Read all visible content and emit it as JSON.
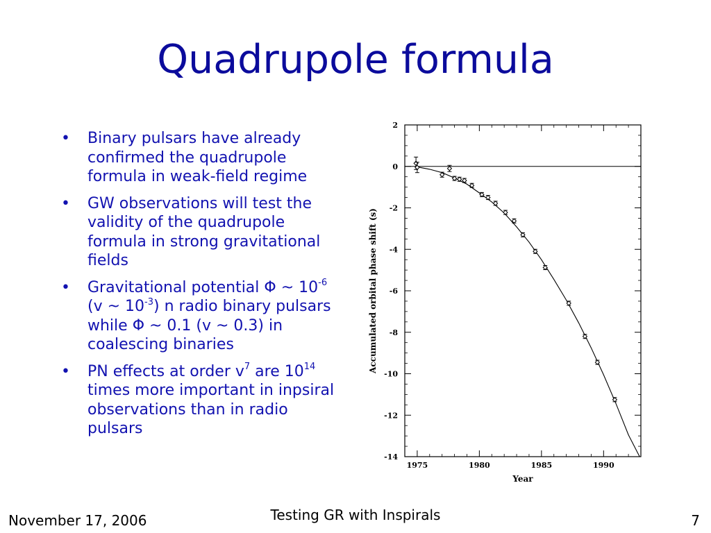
{
  "slide": {
    "title": "Quadrupole formula",
    "footer_date": "November 17, 2006",
    "footer_title": "Testing GR with Inspirals",
    "page_number": "7"
  },
  "bullets": [
    {
      "marker": "•",
      "segments": [
        {
          "t": "Binary pulsars have already confirmed the quadrupole formula in weak-field regime"
        }
      ]
    },
    {
      "marker": "•",
      "segments": [
        {
          "t": "GW observations will test the validity of the quadrupole formula in strong gravitational fields"
        }
      ]
    },
    {
      "marker": "•",
      "segments": [
        {
          "t": "Gravitational potential Φ ~ 10"
        },
        {
          "sup": "-6"
        },
        {
          "t": " (v ~ 10"
        },
        {
          "sup": "-3"
        },
        {
          "t": ") n radio binary pulsars while Φ ~ 0.1 (v ~ 0.3) in coalescing binaries"
        }
      ]
    },
    {
      "marker": "•",
      "segments": [
        {
          "t": "PN effects at order v"
        },
        {
          "sup": "7"
        },
        {
          "t": " are 10"
        },
        {
          "sup": "14"
        },
        {
          "t": " times more important in inpsiral observations than in radio pulsars"
        }
      ]
    }
  ],
  "chart_data": {
    "type": "scatter",
    "xlabel": "Year",
    "ylabel": "Accumulated orbital phase shift (s)",
    "xlim": [
      1974,
      1993
    ],
    "ylim": [
      -14,
      2
    ],
    "x_ticks": [
      1975,
      1980,
      1985,
      1990
    ],
    "y_ticks": [
      2,
      0,
      -2,
      -4,
      -6,
      -8,
      -10,
      -12,
      -14
    ],
    "grid": false,
    "reference_line_y": 0,
    "curve": [
      {
        "x": 1974.8,
        "y": 0
      },
      {
        "x": 1976,
        "y": -0.14
      },
      {
        "x": 1977,
        "y": -0.3
      },
      {
        "x": 1978,
        "y": -0.56
      },
      {
        "x": 1979,
        "y": -0.86
      },
      {
        "x": 1980,
        "y": -1.28
      },
      {
        "x": 1981,
        "y": -1.72
      },
      {
        "x": 1982,
        "y": -2.25
      },
      {
        "x": 1983,
        "y": -2.92
      },
      {
        "x": 1984,
        "y": -3.65
      },
      {
        "x": 1985,
        "y": -4.5
      },
      {
        "x": 1986,
        "y": -5.45
      },
      {
        "x": 1987,
        "y": -6.45
      },
      {
        "x": 1988,
        "y": -7.55
      },
      {
        "x": 1989,
        "y": -8.75
      },
      {
        "x": 1990,
        "y": -10.05
      },
      {
        "x": 1991,
        "y": -11.45
      },
      {
        "x": 1992,
        "y": -12.95
      },
      {
        "x": 1992.9,
        "y": -14
      }
    ],
    "points": [
      {
        "x": 1974.9,
        "y": 0.15,
        "err": 0.3
      },
      {
        "x": 1975.0,
        "y": -0.05,
        "err": 0.25
      },
      {
        "x": 1977.0,
        "y": -0.4,
        "err": 0.12
      },
      {
        "x": 1977.6,
        "y": -0.1,
        "err": 0.15
      },
      {
        "x": 1978.0,
        "y": -0.58,
        "err": 0.1
      },
      {
        "x": 1978.4,
        "y": -0.62,
        "err": 0.1
      },
      {
        "x": 1978.8,
        "y": -0.68,
        "err": 0.08
      },
      {
        "x": 1979.4,
        "y": -0.92,
        "err": 0.06
      },
      {
        "x": 1980.2,
        "y": -1.36,
        "err": 0.06
      },
      {
        "x": 1980.7,
        "y": -1.5,
        "err": 0.06
      },
      {
        "x": 1981.3,
        "y": -1.78,
        "err": 0.05
      },
      {
        "x": 1982.1,
        "y": -2.22,
        "err": 0.05
      },
      {
        "x": 1982.8,
        "y": -2.63,
        "err": 0.05
      },
      {
        "x": 1983.5,
        "y": -3.3,
        "err": 0.05
      },
      {
        "x": 1984.5,
        "y": -4.1,
        "err": 0.05
      },
      {
        "x": 1985.3,
        "y": -4.88,
        "err": 0.05
      },
      {
        "x": 1987.2,
        "y": -6.6,
        "err": 0.05
      },
      {
        "x": 1988.5,
        "y": -8.2,
        "err": 0.05
      },
      {
        "x": 1989.5,
        "y": -9.45,
        "err": 0.05
      },
      {
        "x": 1990.9,
        "y": -11.25,
        "err": 0.05
      }
    ]
  }
}
